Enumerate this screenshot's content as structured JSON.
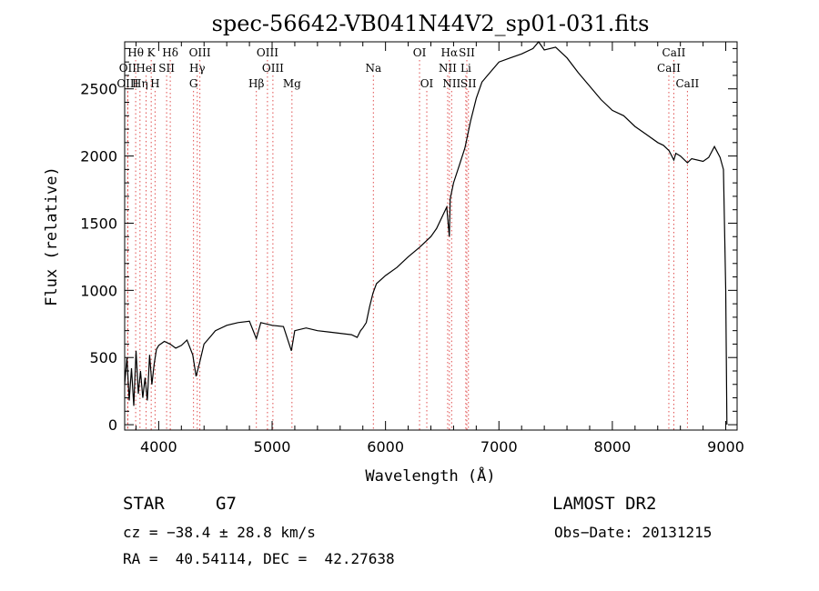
{
  "chart_data": {
    "type": "line",
    "title": "spec-56642-VB041N44V2_sp01-031.fits",
    "xlabel": "Wavelength (Å)",
    "ylabel": "Flux (relative)",
    "xlim": [
      3700,
      9100
    ],
    "ylim": [
      -40,
      2850
    ],
    "x_ticks": [
      4000,
      5000,
      6000,
      7000,
      8000,
      9000
    ],
    "y_ticks": [
      0,
      500,
      1000,
      1500,
      2000,
      2500
    ],
    "grid": false,
    "spectrum": {
      "x": [
        3700,
        3720,
        3740,
        3760,
        3780,
        3800,
        3820,
        3840,
        3860,
        3880,
        3900,
        3920,
        3940,
        3960,
        3980,
        4000,
        4050,
        4100,
        4150,
        4200,
        4250,
        4300,
        4330,
        4360,
        4400,
        4450,
        4500,
        4600,
        4700,
        4800,
        4861,
        4900,
        5000,
        5100,
        5170,
        5200,
        5300,
        5400,
        5500,
        5600,
        5700,
        5750,
        5780,
        5800,
        5830,
        5860,
        5890,
        5920,
        6000,
        6100,
        6200,
        6300,
        6400,
        6450,
        6500,
        6540,
        6563,
        6570,
        6600,
        6650,
        6700,
        6750,
        6800,
        6850,
        6900,
        7000,
        7100,
        7200,
        7300,
        7350,
        7400,
        7500,
        7600,
        7700,
        7800,
        7900,
        8000,
        8100,
        8200,
        8300,
        8400,
        8450,
        8500,
        8542,
        8560,
        8600,
        8662,
        8700,
        8800,
        8850,
        8900,
        8950,
        8980,
        9000,
        9010
      ],
      "y": [
        300,
        500,
        180,
        420,
        140,
        550,
        230,
        400,
        200,
        350,
        180,
        520,
        300,
        450,
        560,
        590,
        620,
        600,
        570,
        590,
        630,
        520,
        360,
        460,
        600,
        650,
        700,
        740,
        760,
        770,
        640,
        760,
        740,
        730,
        550,
        700,
        720,
        700,
        690,
        680,
        670,
        650,
        700,
        720,
        760,
        880,
        980,
        1050,
        1110,
        1170,
        1250,
        1320,
        1400,
        1460,
        1550,
        1620,
        1400,
        1680,
        1800,
        1930,
        2060,
        2260,
        2430,
        2550,
        2600,
        2700,
        2730,
        2760,
        2800,
        2850,
        2790,
        2810,
        2730,
        2620,
        2520,
        2420,
        2340,
        2300,
        2220,
        2160,
        2100,
        2080,
        2040,
        1970,
        2020,
        2000,
        1950,
        1980,
        1960,
        1990,
        2070,
        1990,
        1900,
        1000,
        0
      ]
    },
    "lines": [
      {
        "label": "Hθ",
        "x": 3797,
        "row": 1
      },
      {
        "label": "K",
        "x": 3934,
        "row": 1
      },
      {
        "label": "Hδ",
        "x": 4102,
        "row": 1
      },
      {
        "label": "OIII",
        "x": 4363,
        "row": 1
      },
      {
        "label": "OIII",
        "x": 4959,
        "row": 1
      },
      {
        "label": "OI",
        "x": 6300,
        "row": 1
      },
      {
        "label": "Hα",
        "x": 6563,
        "row": 1
      },
      {
        "label": "SII",
        "x": 6717,
        "row": 1
      },
      {
        "label": "CaII",
        "x": 8542,
        "row": 1
      },
      {
        "label": "OII",
        "x": 3727,
        "row": 2
      },
      {
        "label": "HeI",
        "x": 3889,
        "row": 2
      },
      {
        "label": "SII",
        "x": 4070,
        "row": 2
      },
      {
        "label": "Hγ",
        "x": 4340,
        "row": 2
      },
      {
        "label": "OIII",
        "x": 5007,
        "row": 2
      },
      {
        "label": "Na",
        "x": 5893,
        "row": 2
      },
      {
        "label": "NII",
        "x": 6548,
        "row": 2
      },
      {
        "label": "Li",
        "x": 6708,
        "row": 2
      },
      {
        "label": "CaII",
        "x": 8498,
        "row": 2
      },
      {
        "label": "OIII",
        "x": 3727,
        "row": 3
      },
      {
        "label": "Hη",
        "x": 3835,
        "row": 3
      },
      {
        "label": "H",
        "x": 3968,
        "row": 3
      },
      {
        "label": "G",
        "x": 4307,
        "row": 3
      },
      {
        "label": "Hβ",
        "x": 4861,
        "row": 3
      },
      {
        "label": "Mg",
        "x": 5175,
        "row": 3
      },
      {
        "label": "OI",
        "x": 6364,
        "row": 3
      },
      {
        "label": "NII",
        "x": 6583,
        "row": 3
      },
      {
        "label": "SII",
        "x": 6731,
        "row": 3
      },
      {
        "label": "CaII",
        "x": 8662,
        "row": 3
      }
    ],
    "line_color": "#e05050"
  },
  "footer": {
    "class_label": "STAR",
    "subclass": "G7",
    "survey": "LAMOST DR2",
    "cz": "cz = −38.4 ± 28.8 km/s",
    "obs_date": "Obs−Date: 20131215",
    "coords": "RA =  40.54114, DEC =  42.27638"
  }
}
